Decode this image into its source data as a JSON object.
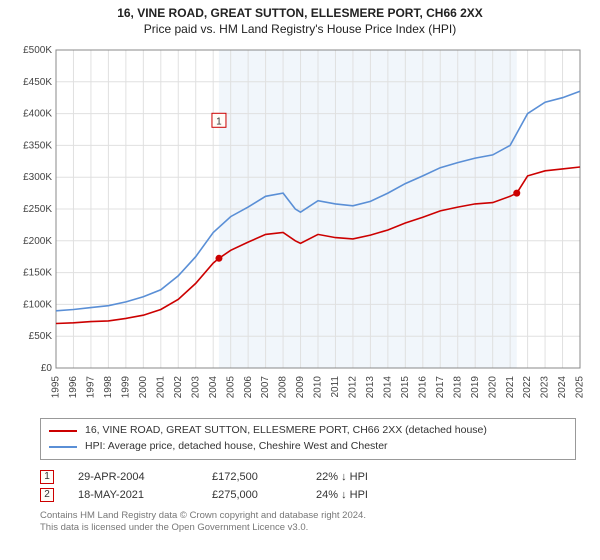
{
  "title": {
    "line1": "16, VINE ROAD, GREAT SUTTON, ELLESMERE PORT, CH66 2XX",
    "line2": "Price paid vs. HM Land Registry's House Price Index (HPI)"
  },
  "chart": {
    "type": "line",
    "background_color": "#ffffff",
    "plot_background": "#ffffff",
    "shaded_band": {
      "x_start": 2004.33,
      "x_end": 2021.38,
      "fill": "#eef4fa",
      "opacity": 0.85
    },
    "grid_color": "#e0e0e0",
    "axis_color": "#888888",
    "text_color": "#444444",
    "label_fontsize": 10,
    "x_axis": {
      "min": 1995,
      "max": 2025,
      "ticks": [
        1995,
        1996,
        1997,
        1998,
        1999,
        2000,
        2001,
        2002,
        2003,
        2004,
        2005,
        2006,
        2007,
        2008,
        2009,
        2010,
        2011,
        2012,
        2013,
        2014,
        2015,
        2016,
        2017,
        2018,
        2019,
        2020,
        2021,
        2022,
        2023,
        2024,
        2025
      ],
      "tick_label_rotation": -90
    },
    "y_axis": {
      "min": 0,
      "max": 500000,
      "ticks": [
        0,
        50000,
        100000,
        150000,
        200000,
        250000,
        300000,
        350000,
        400000,
        450000,
        500000
      ],
      "tick_labels": [
        "£0",
        "£50K",
        "£100K",
        "£150K",
        "£200K",
        "£250K",
        "£300K",
        "£350K",
        "£400K",
        "£450K",
        "£500K"
      ]
    },
    "series": [
      {
        "name": "property",
        "color": "#cc0000",
        "line_width": 1.6,
        "points": [
          [
            1995,
            70000
          ],
          [
            1996,
            71000
          ],
          [
            1997,
            73000
          ],
          [
            1998,
            74000
          ],
          [
            1999,
            78000
          ],
          [
            2000,
            83000
          ],
          [
            2001,
            92000
          ],
          [
            2002,
            108000
          ],
          [
            2003,
            133000
          ],
          [
            2004,
            165000
          ],
          [
            2004.33,
            172500
          ],
          [
            2005,
            185000
          ],
          [
            2006,
            198000
          ],
          [
            2007,
            210000
          ],
          [
            2008,
            213000
          ],
          [
            2008.7,
            200000
          ],
          [
            2009,
            196000
          ],
          [
            2010,
            210000
          ],
          [
            2011,
            205000
          ],
          [
            2012,
            203000
          ],
          [
            2013,
            209000
          ],
          [
            2014,
            217000
          ],
          [
            2015,
            228000
          ],
          [
            2016,
            237000
          ],
          [
            2017,
            247000
          ],
          [
            2018,
            253000
          ],
          [
            2019,
            258000
          ],
          [
            2020,
            260000
          ],
          [
            2021,
            270000
          ],
          [
            2021.38,
            275000
          ],
          [
            2022,
            302000
          ],
          [
            2023,
            310000
          ],
          [
            2024,
            313000
          ],
          [
            2025,
            316000
          ]
        ]
      },
      {
        "name": "hpi",
        "color": "#5a8fd6",
        "line_width": 1.6,
        "points": [
          [
            1995,
            90000
          ],
          [
            1996,
            92000
          ],
          [
            1997,
            95000
          ],
          [
            1998,
            98000
          ],
          [
            1999,
            104000
          ],
          [
            2000,
            112000
          ],
          [
            2001,
            123000
          ],
          [
            2002,
            145000
          ],
          [
            2003,
            175000
          ],
          [
            2004,
            213000
          ],
          [
            2005,
            238000
          ],
          [
            2006,
            253000
          ],
          [
            2007,
            270000
          ],
          [
            2008,
            275000
          ],
          [
            2008.7,
            250000
          ],
          [
            2009,
            245000
          ],
          [
            2010,
            263000
          ],
          [
            2011,
            258000
          ],
          [
            2012,
            255000
          ],
          [
            2013,
            262000
          ],
          [
            2014,
            275000
          ],
          [
            2015,
            290000
          ],
          [
            2016,
            302000
          ],
          [
            2017,
            315000
          ],
          [
            2018,
            323000
          ],
          [
            2019,
            330000
          ],
          [
            2020,
            335000
          ],
          [
            2021,
            350000
          ],
          [
            2022,
            400000
          ],
          [
            2023,
            418000
          ],
          [
            2024,
            425000
          ],
          [
            2025,
            435000
          ]
        ]
      }
    ],
    "event_markers": [
      {
        "n": "1",
        "x": 2004.33,
        "y": 172500,
        "border_color": "#cc0000",
        "dot_color": "#cc0000",
        "label_y_offset": -145
      },
      {
        "n": "2",
        "x": 2021.38,
        "y": 275000,
        "border_color": "#cc0000",
        "dot_color": "#cc0000",
        "label_y_offset": -205
      }
    ]
  },
  "legend": {
    "border_color": "#999999",
    "items": [
      {
        "color": "#cc0000",
        "label": "16, VINE ROAD, GREAT SUTTON, ELLESMERE PORT, CH66 2XX (detached house)"
      },
      {
        "color": "#5a8fd6",
        "label": "HPI: Average price, detached house, Cheshire West and Chester"
      }
    ]
  },
  "events": [
    {
      "n": "1",
      "border_color": "#cc0000",
      "date": "29-APR-2004",
      "price": "£172,500",
      "hpi_diff": "22% ↓ HPI"
    },
    {
      "n": "2",
      "border_color": "#cc0000",
      "date": "18-MAY-2021",
      "price": "£275,000",
      "hpi_diff": "24% ↓ HPI"
    }
  ],
  "footer": {
    "line1": "Contains HM Land Registry data © Crown copyright and database right 2024.",
    "line2": "This data is licensed under the Open Government Licence v3.0."
  }
}
